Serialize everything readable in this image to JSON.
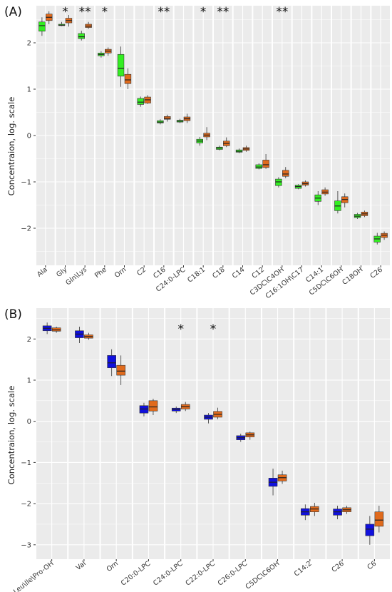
{
  "colors": {
    "panel_bg": "#ebebeb",
    "grid": "#ffffff",
    "whisker": "#333333",
    "green": "#33ee22",
    "orange": "#e06a1c",
    "blue": "#1010dd"
  },
  "chart_data": [
    {
      "type": "box",
      "panel_label": "(A)",
      "ylabel": "Concentraion, log. scale",
      "ylim": [
        -2.8,
        2.8
      ],
      "yticks": [
        -2,
        -1,
        0,
        1,
        2
      ],
      "yticklabels": [
        "−2",
        "−1",
        "0",
        "1",
        "2"
      ],
      "series_colors": [
        "#33ee22",
        "#e06a1c"
      ],
      "categories": [
        "Ala",
        "Gly",
        "Gln\\Lys",
        "Phe",
        "Orn",
        "C2",
        "C16",
        "C24:0-LPC",
        "C18:1",
        "C18",
        "C14",
        "C12",
        "C3DC\\C4OH",
        "C16:1OH\\C17",
        "C14:1",
        "C5DC\\C6OH",
        "C18OH",
        "C26"
      ],
      "significance": [
        "",
        "*",
        "**",
        "*",
        "",
        "",
        "**",
        "",
        "*",
        "**",
        "",
        "",
        "**",
        "",
        "",
        "",
        "",
        ""
      ],
      "boxes": [
        [
          {
            "min": 2.15,
            "q1": 2.25,
            "median": 2.37,
            "q3": 2.45,
            "max": 2.55
          },
          {
            "min": 2.4,
            "q1": 2.48,
            "median": 2.55,
            "q3": 2.62,
            "max": 2.68
          }
        ],
        [
          {
            "min": 2.36,
            "q1": 2.37,
            "median": 2.38,
            "q3": 2.4,
            "max": 2.45
          },
          {
            "min": 2.35,
            "q1": 2.43,
            "median": 2.48,
            "q3": 2.53,
            "max": 2.6
          }
        ],
        [
          {
            "min": 2.05,
            "q1": 2.09,
            "median": 2.13,
            "q3": 2.2,
            "max": 2.26
          },
          {
            "min": 2.3,
            "q1": 2.33,
            "median": 2.36,
            "q3": 2.4,
            "max": 2.45
          }
        ],
        [
          {
            "min": 1.68,
            "q1": 1.72,
            "median": 1.75,
            "q3": 1.78,
            "max": 1.82
          },
          {
            "min": 1.72,
            "q1": 1.78,
            "median": 1.82,
            "q3": 1.86,
            "max": 1.9
          }
        ],
        [
          {
            "min": 1.05,
            "q1": 1.28,
            "median": 1.45,
            "q3": 1.75,
            "max": 1.92
          },
          {
            "min": 1.0,
            "q1": 1.12,
            "median": 1.2,
            "q3": 1.32,
            "max": 1.45
          }
        ],
        [
          {
            "min": 0.62,
            "q1": 0.67,
            "median": 0.72,
            "q3": 0.8,
            "max": 0.84
          },
          {
            "min": 0.68,
            "q1": 0.7,
            "median": 0.77,
            "q3": 0.83,
            "max": 0.87
          }
        ],
        [
          {
            "min": 0.24,
            "q1": 0.27,
            "median": 0.29,
            "q3": 0.32,
            "max": 0.35
          },
          {
            "min": 0.3,
            "q1": 0.35,
            "median": 0.37,
            "q3": 0.41,
            "max": 0.45
          }
        ],
        [
          {
            "min": 0.27,
            "q1": 0.29,
            "median": 0.31,
            "q3": 0.33,
            "max": 0.36
          },
          {
            "min": 0.27,
            "q1": 0.32,
            "median": 0.36,
            "q3": 0.4,
            "max": 0.47
          }
        ],
        [
          {
            "min": -0.22,
            "q1": -0.16,
            "median": -0.12,
            "q3": -0.08,
            "max": -0.03
          },
          {
            "min": -0.1,
            "q1": -0.03,
            "median": 0.01,
            "q3": 0.05,
            "max": 0.18
          }
        ],
        [
          {
            "min": -0.32,
            "q1": -0.3,
            "median": -0.27,
            "q3": -0.25,
            "max": -0.22
          },
          {
            "min": -0.25,
            "q1": -0.22,
            "median": -0.17,
            "q3": -0.12,
            "max": -0.04
          }
        ],
        [
          {
            "min": -0.38,
            "q1": -0.36,
            "median": -0.34,
            "q3": -0.31,
            "max": -0.28
          },
          {
            "min": -0.35,
            "q1": -0.32,
            "median": -0.29,
            "q3": -0.26,
            "max": -0.22
          }
        ],
        [
          {
            "min": -0.73,
            "q1": -0.71,
            "median": -0.68,
            "q3": -0.63,
            "max": -0.6
          },
          {
            "min": -0.72,
            "q1": -0.69,
            "median": -0.63,
            "q3": -0.53,
            "max": -0.4
          }
        ],
        [
          {
            "min": -1.12,
            "q1": -1.08,
            "median": -1.0,
            "q3": -0.94,
            "max": -0.9
          },
          {
            "min": -0.92,
            "q1": -0.88,
            "median": -0.83,
            "q3": -0.75,
            "max": -0.68
          }
        ],
        [
          {
            "min": -1.16,
            "q1": -1.14,
            "median": -1.1,
            "q3": -1.07,
            "max": -1.05
          },
          {
            "min": -1.1,
            "q1": -1.07,
            "median": -1.04,
            "q3": -1.0,
            "max": -0.97
          }
        ],
        [
          {
            "min": -1.5,
            "q1": -1.42,
            "median": -1.35,
            "q3": -1.28,
            "max": -1.2
          },
          {
            "min": -1.3,
            "q1": -1.26,
            "median": -1.22,
            "q3": -1.17,
            "max": -1.12
          }
        ],
        [
          {
            "min": -1.68,
            "q1": -1.62,
            "median": -1.52,
            "q3": -1.41,
            "max": -1.2
          },
          {
            "min": -1.55,
            "q1": -1.45,
            "median": -1.38,
            "q3": -1.32,
            "max": -1.25
          }
        ],
        [
          {
            "min": -1.8,
            "q1": -1.77,
            "median": -1.74,
            "q3": -1.7,
            "max": -1.67
          },
          {
            "min": -1.76,
            "q1": -1.73,
            "median": -1.69,
            "q3": -1.65,
            "max": -1.62
          }
        ],
        [
          {
            "min": -2.35,
            "q1": -2.3,
            "median": -2.23,
            "q3": -2.17,
            "max": -2.1
          },
          {
            "min": -2.25,
            "q1": -2.2,
            "median": -2.15,
            "q3": -2.11,
            "max": -2.07
          }
        ]
      ]
    },
    {
      "type": "box",
      "panel_label": "(B)",
      "ylabel": "Concentraion, log. scale",
      "ylim": [
        -3.35,
        2.75
      ],
      "yticks": [
        -3,
        -2,
        -1,
        0,
        1,
        2
      ],
      "yticklabels": [
        "−3",
        "−2",
        "−1",
        "0",
        "1",
        "2"
      ],
      "series_colors": [
        "#1010dd",
        "#e06a1c"
      ],
      "categories": [
        "Leu\\Ile\\Pro-OH",
        "Val",
        "Orn",
        "C20:0-LPC",
        "C24:0-LPC",
        "C22:0-LPC",
        "C26:0-LPC",
        "C5DC\\C6OH",
        "C14:2",
        "C26",
        "C6"
      ],
      "significance": [
        "",
        "",
        "",
        "",
        "*",
        "*",
        "",
        "",
        "",
        "",
        ""
      ],
      "boxes": [
        [
          {
            "min": 2.12,
            "q1": 2.2,
            "median": 2.26,
            "q3": 2.32,
            "max": 2.4
          },
          {
            "min": 2.15,
            "q1": 2.19,
            "median": 2.22,
            "q3": 2.27,
            "max": 2.3
          }
        ],
        [
          {
            "min": 1.9,
            "q1": 2.03,
            "median": 2.12,
            "q3": 2.2,
            "max": 2.3
          },
          {
            "min": 1.98,
            "q1": 2.02,
            "median": 2.06,
            "q3": 2.1,
            "max": 2.15
          }
        ],
        [
          {
            "min": 1.1,
            "q1": 1.3,
            "median": 1.42,
            "q3": 1.6,
            "max": 1.75
          },
          {
            "min": 0.88,
            "q1": 1.12,
            "median": 1.22,
            "q3": 1.36,
            "max": 1.6
          }
        ],
        [
          {
            "min": 0.12,
            "q1": 0.2,
            "median": 0.3,
            "q3": 0.38,
            "max": 0.45
          },
          {
            "min": 0.15,
            "q1": 0.25,
            "median": 0.35,
            "q3": 0.5,
            "max": 0.55
          }
        ],
        [
          {
            "min": 0.2,
            "q1": 0.25,
            "median": 0.29,
            "q3": 0.32,
            "max": 0.36
          },
          {
            "min": 0.25,
            "q1": 0.3,
            "median": 0.36,
            "q3": 0.41,
            "max": 0.47
          }
        ],
        [
          {
            "min": -0.05,
            "q1": 0.05,
            "median": 0.1,
            "q3": 0.15,
            "max": 0.2
          },
          {
            "min": 0.05,
            "q1": 0.1,
            "median": 0.17,
            "q3": 0.24,
            "max": 0.33
          }
        ],
        [
          {
            "min": -0.5,
            "q1": -0.45,
            "median": -0.4,
            "q3": -0.35,
            "max": -0.3
          },
          {
            "min": -0.45,
            "q1": -0.38,
            "median": -0.33,
            "q3": -0.28,
            "max": -0.25
          }
        ],
        [
          {
            "min": -1.8,
            "q1": -1.58,
            "median": -1.48,
            "q3": -1.38,
            "max": -1.15
          },
          {
            "min": -1.52,
            "q1": -1.45,
            "median": -1.37,
            "q3": -1.3,
            "max": -1.2
          }
        ],
        [
          {
            "min": -2.4,
            "q1": -2.28,
            "median": -2.2,
            "q3": -2.12,
            "max": -2.02
          },
          {
            "min": -2.3,
            "q1": -2.2,
            "median": -2.13,
            "q3": -2.07,
            "max": -1.98
          }
        ],
        [
          {
            "min": -2.38,
            "q1": -2.28,
            "median": -2.2,
            "q3": -2.13,
            "max": -2.05
          },
          {
            "min": -2.25,
            "q1": -2.2,
            "median": -2.15,
            "q3": -2.1,
            "max": -2.05
          }
        ],
        [
          {
            "min": -3.0,
            "q1": -2.78,
            "median": -2.62,
            "q3": -2.5,
            "max": -2.3
          },
          {
            "min": -2.7,
            "q1": -2.55,
            "median": -2.4,
            "q3": -2.2,
            "max": -2.05
          }
        ]
      ]
    }
  ]
}
